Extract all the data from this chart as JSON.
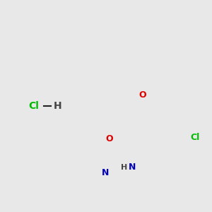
{
  "background_color": "#e8e8e8",
  "bond_color": "#222222",
  "atom_colors": {
    "O": "#dd0000",
    "N": "#0000bb",
    "Cl": "#00bb00",
    "H_label": "#444444"
  },
  "lw": 1.4,
  "dbo": 0.22,
  "figsize": [
    3.0,
    3.0
  ],
  "dpi": 100
}
